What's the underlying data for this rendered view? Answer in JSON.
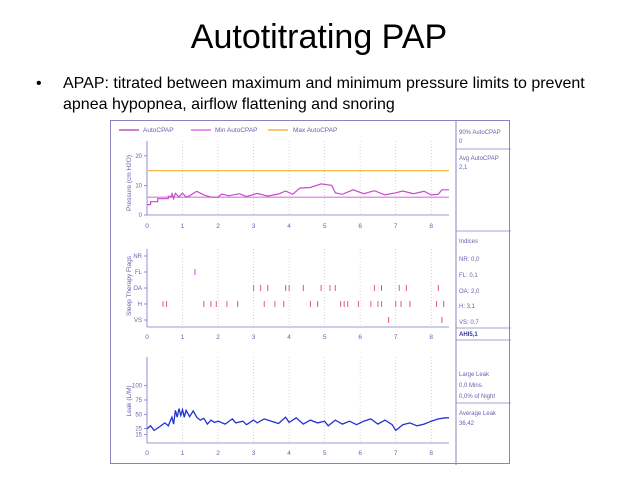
{
  "slide": {
    "title": "Autotitrating PAP",
    "bullet_marker": "•",
    "bullet_line1": "APAP: titrated between maximum and minimum pressure limits to prevent",
    "bullet_line2": "apnea hypopnea, airflow flattening and snoring"
  },
  "colors": {
    "auto": "#c24ec8",
    "min": "#e070ea",
    "max": "#f2b94a",
    "flag": "#e05a78",
    "leak": "#2233cc",
    "axis": "#7777cc",
    "border": "#8a82c2"
  },
  "chart_data": [
    {
      "type": "line",
      "title": "Pressure",
      "ylabel": "Pressure (cm H2O)",
      "legend": [
        "AutoCPAP",
        "Min AutoCPAP",
        "Max AutoCPAP"
      ],
      "xlim": [
        0,
        8.5
      ],
      "ylim": [
        0,
        25
      ],
      "x_ticks": [
        "0",
        "1",
        "2",
        "3",
        "4",
        "5",
        "6",
        "7",
        "8"
      ],
      "y_ticks": [
        "0",
        "10",
        "20"
      ],
      "series": [
        {
          "name": "Max AutoCPAP",
          "values": [
            [
              0,
              15
            ],
            [
              8.5,
              15
            ]
          ]
        },
        {
          "name": "Min AutoCPAP",
          "values": [
            [
              0,
              6
            ],
            [
              8.5,
              6
            ]
          ]
        },
        {
          "name": "AutoCPAP",
          "values": [
            [
              0,
              3.5
            ],
            [
              0.1,
              3.5
            ],
            [
              0.1,
              4.5
            ],
            [
              0.3,
              4.5
            ],
            [
              0.3,
              5.5
            ],
            [
              0.6,
              5.5
            ],
            [
              0.6,
              6.3
            ],
            [
              0.7,
              6.3
            ],
            [
              0.7,
              7.5
            ],
            [
              0.75,
              5.5
            ],
            [
              0.8,
              7.3
            ],
            [
              0.9,
              6.1
            ],
            [
              1.0,
              7.4
            ],
            [
              1.1,
              6.0
            ],
            [
              1.2,
              6.5
            ],
            [
              1.4,
              8.0
            ],
            [
              1.6,
              6.8
            ],
            [
              1.8,
              6.0
            ],
            [
              2.0,
              6.0
            ],
            [
              2.1,
              7.1
            ],
            [
              2.3,
              6.5
            ],
            [
              2.6,
              7.2
            ],
            [
              2.8,
              6.2
            ],
            [
              3.1,
              7.3
            ],
            [
              3.4,
              6.4
            ],
            [
              3.7,
              7.1
            ],
            [
              3.9,
              8.1
            ],
            [
              4.1,
              7.0
            ],
            [
              4.3,
              9.1
            ],
            [
              4.6,
              9.3
            ],
            [
              4.9,
              10.5
            ],
            [
              5.2,
              10.0
            ],
            [
              5.3,
              7.5
            ],
            [
              5.5,
              7.0
            ],
            [
              5.8,
              8.5
            ],
            [
              6.1,
              7.2
            ],
            [
              6.4,
              8.2
            ],
            [
              6.7,
              6.8
            ],
            [
              7.0,
              7.5
            ],
            [
              7.2,
              8.1
            ],
            [
              7.5,
              7.2
            ],
            [
              7.8,
              8.0
            ],
            [
              8.0,
              6.8
            ],
            [
              8.2,
              7.0
            ],
            [
              8.3,
              8.5
            ],
            [
              8.5,
              8.5
            ]
          ]
        }
      ]
    },
    {
      "type": "scatter",
      "title": "Sleep Therapy Flags",
      "ylabel": "Sleep Therapy Flags",
      "xlim": [
        0,
        8.5
      ],
      "categories": [
        "NR",
        "FL",
        "OA",
        "H",
        "VS"
      ],
      "x_ticks": [
        "0",
        "1",
        "2",
        "3",
        "4",
        "5",
        "6",
        "7",
        "8"
      ],
      "events": {
        "NR": [],
        "FL": [
          1.35
        ],
        "OA": [
          3.0,
          3.2,
          3.4,
          3.9,
          4.0,
          4.4,
          4.9,
          5.15,
          5.3,
          6.4,
          6.6,
          7.1,
          7.3,
          8.2
        ],
        "H": [
          0.45,
          0.55,
          1.6,
          1.8,
          1.95,
          2.25,
          2.55,
          3.3,
          3.6,
          3.85,
          4.6,
          4.8,
          5.45,
          5.55,
          5.65,
          5.95,
          6.3,
          6.5,
          6.6,
          7.0,
          7.15,
          7.4,
          8.15,
          8.35
        ],
        "VS": [
          6.8,
          8.3
        ]
      }
    },
    {
      "type": "line",
      "title": "Leak",
      "ylabel": "Leak (L/M)",
      "xlim": [
        0,
        8.5
      ],
      "ylim": [
        0,
        150
      ],
      "x_ticks": [
        "0",
        "1",
        "2",
        "3",
        "4",
        "5",
        "6",
        "7",
        "8"
      ],
      "y_ticks": [
        "25",
        "50",
        "75",
        "100",
        "15"
      ],
      "series": [
        {
          "name": "Leak",
          "values": [
            [
              0,
              25
            ],
            [
              0.1,
              30
            ],
            [
              0.2,
              22
            ],
            [
              0.35,
              28
            ],
            [
              0.5,
              35
            ],
            [
              0.6,
              30
            ],
            [
              0.7,
              45
            ],
            [
              0.75,
              33
            ],
            [
              0.8,
              57
            ],
            [
              0.85,
              45
            ],
            [
              0.9,
              60
            ],
            [
              0.95,
              48
            ],
            [
              1.0,
              58
            ],
            [
              1.05,
              45
            ],
            [
              1.1,
              57
            ],
            [
              1.2,
              46
            ],
            [
              1.3,
              56
            ],
            [
              1.4,
              45
            ],
            [
              1.5,
              40
            ],
            [
              1.6,
              43
            ],
            [
              1.7,
              33
            ],
            [
              1.8,
              40
            ],
            [
              1.9,
              36
            ],
            [
              2.0,
              38
            ],
            [
              2.2,
              33
            ],
            [
              2.4,
              42
            ],
            [
              2.5,
              35
            ],
            [
              2.7,
              38
            ],
            [
              2.8,
              32
            ],
            [
              3.0,
              40
            ],
            [
              3.1,
              35
            ],
            [
              3.3,
              42
            ],
            [
              3.5,
              38
            ],
            [
              3.7,
              34
            ],
            [
              3.9,
              45
            ],
            [
              4.0,
              36
            ],
            [
              4.2,
              44
            ],
            [
              4.4,
              33
            ],
            [
              4.6,
              40
            ],
            [
              4.8,
              35
            ],
            [
              5.0,
              38
            ],
            [
              5.1,
              30
            ],
            [
              5.3,
              40
            ],
            [
              5.5,
              33
            ],
            [
              5.7,
              38
            ],
            [
              5.9,
              32
            ],
            [
              6.1,
              38
            ],
            [
              6.3,
              42
            ],
            [
              6.5,
              33
            ],
            [
              6.7,
              40
            ],
            [
              6.9,
              32
            ],
            [
              7.0,
              22
            ],
            [
              7.2,
              32
            ],
            [
              7.4,
              35
            ],
            [
              7.6,
              30
            ],
            [
              7.8,
              33
            ],
            [
              8.0,
              38
            ],
            [
              8.2,
              42
            ],
            [
              8.4,
              44
            ],
            [
              8.5,
              44
            ]
          ]
        }
      ]
    }
  ],
  "sidebar": {
    "p90_label": "90% AutoCPAP",
    "p90_value": "0",
    "avg_label": "Avg AutoCPAP",
    "avg_value": "2,1",
    "indices_title": "Indices",
    "nr": "NR: 0,0",
    "fl": "FL: 0,1",
    "oa": "OA: 2,0",
    "h": "H: 3,1",
    "vs": "VS: 0,7",
    "ahi": "AHI5,1",
    "large_leak_title": "Large Leak",
    "large_leak_mins": "0,0 Mins.",
    "large_leak_night": "0,0% of Night",
    "avg_leak_label": "Average Leak",
    "avg_leak_value": "36,42"
  }
}
